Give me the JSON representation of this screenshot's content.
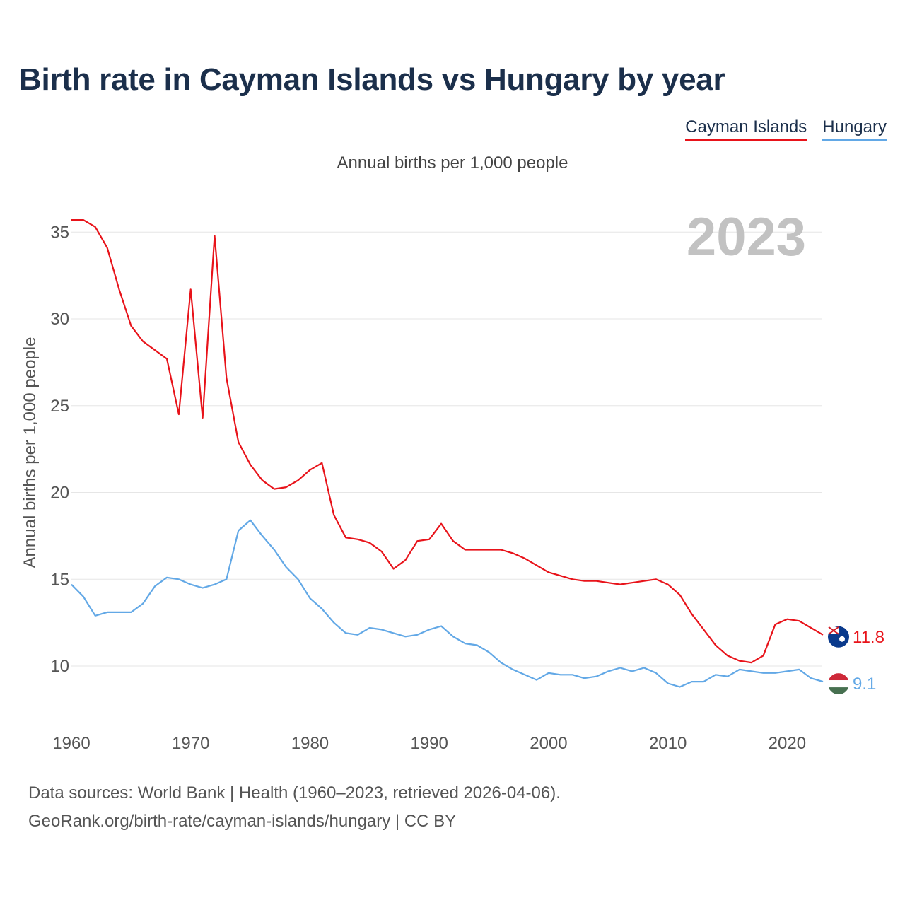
{
  "title": "Birth rate in Cayman Islands vs Hungary by year",
  "subtitle": "Annual births per 1,000 people",
  "legend": [
    {
      "label": "Cayman Islands",
      "color": "#e8131a"
    },
    {
      "label": "Hungary",
      "color": "#62a8e6"
    }
  ],
  "year_label": "2023",
  "footer": {
    "line1": "Data sources: World Bank | Health (1960–2023, retrieved 2026-04-06).",
    "line2": "GeoRank.org/birth-rate/cayman-islands/hungary | CC BY"
  },
  "chart_data": {
    "type": "line",
    "title": "Birth rate in Cayman Islands vs Hungary by year",
    "xlabel": "",
    "ylabel": "Annual births per 1,000 people",
    "xlim": [
      1960,
      2023
    ],
    "ylim": [
      7,
      37
    ],
    "yticks": [
      10,
      15,
      20,
      25,
      30,
      35
    ],
    "xticks": [
      1960,
      1970,
      1980,
      1990,
      2000,
      2010,
      2020
    ],
    "grid": true,
    "x": [
      1960,
      1961,
      1962,
      1963,
      1964,
      1965,
      1966,
      1967,
      1968,
      1969,
      1970,
      1971,
      1972,
      1973,
      1974,
      1975,
      1976,
      1977,
      1978,
      1979,
      1980,
      1981,
      1982,
      1983,
      1984,
      1985,
      1986,
      1987,
      1988,
      1989,
      1990,
      1991,
      1992,
      1993,
      1994,
      1995,
      1996,
      1997,
      1998,
      1999,
      2000,
      2001,
      2002,
      2003,
      2004,
      2005,
      2006,
      2007,
      2008,
      2009,
      2010,
      2011,
      2012,
      2013,
      2014,
      2015,
      2016,
      2017,
      2018,
      2019,
      2020,
      2021,
      2022,
      2023
    ],
    "series": [
      {
        "name": "Cayman Islands",
        "color": "#e8131a",
        "end_label": "11.8",
        "values": [
          35.7,
          35.7,
          35.3,
          34.1,
          31.7,
          29.6,
          28.7,
          28.2,
          27.7,
          24.5,
          31.7,
          24.3,
          34.8,
          26.6,
          22.9,
          21.6,
          20.7,
          20.2,
          20.3,
          20.7,
          21.3,
          21.7,
          18.7,
          17.4,
          17.3,
          17.1,
          16.6,
          15.6,
          16.1,
          17.2,
          17.3,
          18.2,
          17.2,
          16.7,
          16.7,
          16.7,
          16.7,
          16.5,
          16.2,
          15.8,
          15.4,
          15.2,
          15.0,
          14.9,
          14.9,
          14.8,
          14.7,
          14.8,
          14.9,
          15.0,
          14.7,
          14.1,
          13.0,
          12.1,
          11.2,
          10.6,
          10.3,
          10.2,
          10.6,
          12.4,
          12.7,
          12.6,
          12.2,
          11.8
        ]
      },
      {
        "name": "Hungary",
        "color": "#62a8e6",
        "end_label": "9.1",
        "values": [
          14.7,
          14.0,
          12.9,
          13.1,
          13.1,
          13.1,
          13.6,
          14.6,
          15.1,
          15.0,
          14.7,
          14.5,
          14.7,
          15.0,
          17.8,
          18.4,
          17.5,
          16.7,
          15.7,
          15.0,
          13.9,
          13.3,
          12.5,
          11.9,
          11.8,
          12.2,
          12.1,
          11.9,
          11.7,
          11.8,
          12.1,
          12.3,
          11.7,
          11.3,
          11.2,
          10.8,
          10.2,
          9.8,
          9.5,
          9.2,
          9.6,
          9.5,
          9.5,
          9.3,
          9.4,
          9.7,
          9.9,
          9.7,
          9.9,
          9.6,
          9.0,
          8.8,
          9.1,
          9.1,
          9.5,
          9.4,
          9.8,
          9.7,
          9.6,
          9.6,
          9.7,
          9.8,
          9.3,
          9.1
        ]
      }
    ]
  }
}
